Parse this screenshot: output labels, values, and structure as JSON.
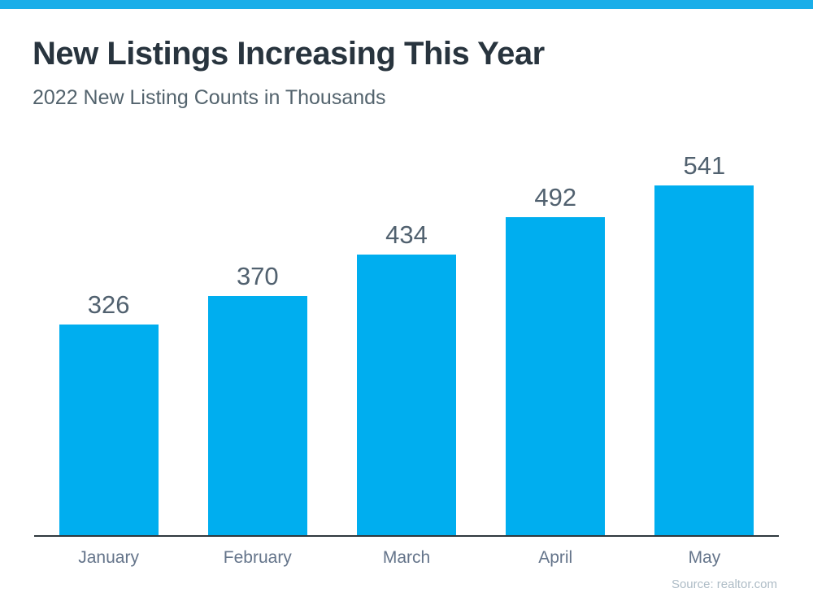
{
  "header": {
    "title": "New Listings Increasing This Year",
    "subtitle": "2022 New Listing Counts in Thousands"
  },
  "chart_data": {
    "type": "bar",
    "title": "New Listings Increasing This Year",
    "subtitle": "2022 New Listing Counts in Thousands",
    "categories": [
      "January",
      "February",
      "March",
      "April",
      "May"
    ],
    "values": [
      326,
      370,
      434,
      492,
      541
    ],
    "xlabel": "",
    "ylabel": "",
    "ylim": [
      0,
      580
    ],
    "grid": false,
    "legend": false,
    "data_labels": true,
    "bar_color": "#00AEEF"
  },
  "footer": {
    "source": "Source: realtor.com"
  },
  "colors": {
    "top_strip": "#1AAEE9",
    "accent_bar": "#00AEEF",
    "title": "#28343E",
    "subtitle": "#53636D",
    "value_label": "#51616F",
    "month_label": "#64748A",
    "axis": "#2F383E",
    "source": "#AEBCC6"
  }
}
